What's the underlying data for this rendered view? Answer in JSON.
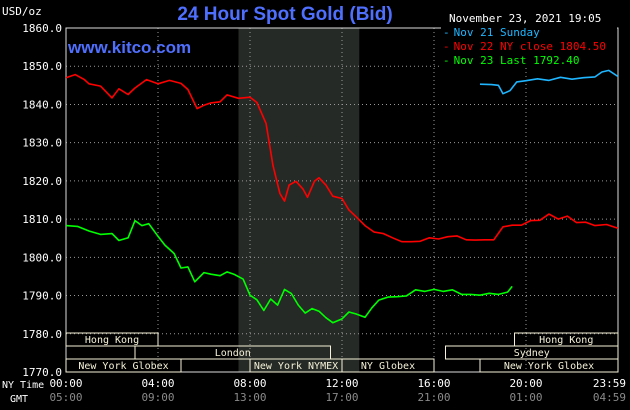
{
  "site": "www.kitco.com",
  "timestamp": "November 23, 2021 19:05",
  "colors": {
    "title": "#4f6fff",
    "background": "#000000",
    "grid": "#9a9a9a",
    "session_shade": "#262a26",
    "session_box_bg": "#f5f2d8",
    "session_box_text": "#2a2a70",
    "series_sunday": "#1fb6ff",
    "series_prev": "#ff0000",
    "series_last": "#00ff00"
  },
  "chart_data": {
    "type": "line",
    "title": "24 Hour Spot Gold (Bid)",
    "ylabel": "USD/oz",
    "xlabel": "",
    "ylim": [
      1770,
      1860
    ],
    "y_ticks": [
      1770,
      1780,
      1790,
      1800,
      1810,
      1820,
      1830,
      1840,
      1850,
      1860
    ],
    "y_tick_labels": [
      "1770.0",
      "1780.0",
      "1790.0",
      "1800.0",
      "1810.0",
      "1820.0",
      "1830.0",
      "1840.0",
      "1850.0",
      "1860.0"
    ],
    "xlim": [
      0,
      24
    ],
    "x_ticks": [
      0,
      4,
      8,
      12,
      16,
      20,
      24
    ],
    "x_tick_labels_ny": [
      "00:00",
      "04:00",
      "08:00",
      "12:00",
      "16:00",
      "20:00",
      "23:59"
    ],
    "x_tick_labels_gmt": [
      "05:00",
      "09:00",
      "13:00",
      "17:00",
      "21:00",
      "01:00",
      "04:59"
    ],
    "x_row_labels": [
      "NY Time",
      "GMT"
    ],
    "grid": true,
    "legend_position": "top-right",
    "highlight_band": [
      7.5,
      12.75
    ],
    "series": [
      {
        "name": "Nov 21 Sunday",
        "color": "#1fb6ff",
        "x": [
          18,
          18.5,
          18.8,
          19,
          19.3,
          19.6,
          20,
          20.5,
          21,
          21.5,
          22,
          22.5,
          23,
          23.3,
          23.6,
          24
        ],
        "y": [
          1845.3,
          1845.2,
          1845.0,
          1842.8,
          1843.6,
          1845.9,
          1846.2,
          1846.7,
          1846.3,
          1847.1,
          1846.6,
          1847.0,
          1847.2,
          1848.5,
          1848.9,
          1847.3
        ]
      },
      {
        "name": "Nov 22 NY close 1804.50",
        "color": "#ff0000",
        "x": [
          0,
          0.4,
          0.8,
          1,
          1.5,
          2,
          2.3,
          2.7,
          3,
          3.5,
          4,
          4.5,
          5,
          5.3,
          5.7,
          6,
          6.3,
          6.7,
          7,
          7.5,
          8,
          8.3,
          8.7,
          9,
          9.3,
          9.5,
          9.7,
          10,
          10.3,
          10.5,
          10.8,
          11,
          11.3,
          11.6,
          12,
          12.3,
          12.6,
          13,
          13.4,
          13.8,
          14.2,
          14.6,
          15,
          15.4,
          15.8,
          16.2,
          16.6,
          17,
          17.4,
          17.8,
          18.2,
          18.6,
          19,
          19.4,
          19.8,
          20.2,
          20.6,
          21,
          21.4,
          21.8,
          22.2,
          22.6,
          23,
          23.5,
          24
        ],
        "y": [
          1847.0,
          1847.8,
          1846.5,
          1845.4,
          1844.8,
          1841.7,
          1844.1,
          1842.6,
          1844.3,
          1846.5,
          1845.4,
          1846.3,
          1845.5,
          1843.9,
          1838.9,
          1839.8,
          1840.4,
          1840.7,
          1842.5,
          1841.6,
          1841.9,
          1840.5,
          1835.0,
          1824.0,
          1816.7,
          1814.7,
          1818.9,
          1819.9,
          1817.9,
          1815.7,
          1819.9,
          1820.8,
          1818.9,
          1816.0,
          1815.4,
          1812.4,
          1810.7,
          1808.3,
          1806.6,
          1806.2,
          1805.1,
          1804.1,
          1804.1,
          1804.2,
          1805.1,
          1804.8,
          1805.4,
          1805.6,
          1804.6,
          1804.5,
          1804.6,
          1804.6,
          1808.0,
          1808.4,
          1808.4,
          1809.6,
          1809.7,
          1811.3,
          1810.0,
          1810.8,
          1809.1,
          1809.2,
          1808.3,
          1808.6,
          1807.6
        ]
      },
      {
        "name": "Nov 23 Last 1792.40",
        "color": "#00ff00",
        "x": [
          0,
          0.5,
          1,
          1.5,
          2,
          2.3,
          2.7,
          3,
          3.3,
          3.6,
          4,
          4.3,
          4.7,
          5,
          5.3,
          5.6,
          6,
          6.3,
          6.7,
          7,
          7.3,
          7.7,
          8,
          8.3,
          8.6,
          8.9,
          9.2,
          9.5,
          9.8,
          10.1,
          10.4,
          10.7,
          11,
          11.3,
          11.6,
          12,
          12.3,
          12.6,
          13,
          13.3,
          13.6,
          14,
          14.4,
          14.8,
          15.2,
          15.6,
          16,
          16.4,
          16.8,
          17.2,
          17.6,
          18,
          18.4,
          18.8,
          19.2,
          19.4
        ],
        "y": [
          1808.3,
          1808.1,
          1806.9,
          1806.0,
          1806.2,
          1804.4,
          1805.1,
          1809.6,
          1808.3,
          1808.8,
          1805.5,
          1803.2,
          1801.0,
          1797.2,
          1797.5,
          1793.6,
          1796.0,
          1795.6,
          1795.2,
          1796.2,
          1795.6,
          1794.3,
          1790.1,
          1788.9,
          1786.1,
          1789.1,
          1787.5,
          1791.6,
          1790.5,
          1787.5,
          1785.4,
          1786.6,
          1785.9,
          1784.2,
          1782.9,
          1783.9,
          1785.7,
          1785.2,
          1784.3,
          1786.8,
          1788.8,
          1789.6,
          1789.7,
          1789.9,
          1791.5,
          1791.1,
          1791.6,
          1791.1,
          1791.5,
          1790.3,
          1790.3,
          1790.1,
          1790.6,
          1790.3,
          1790.9,
          1792.4
        ]
      }
    ]
  },
  "sessions": {
    "rows": [
      [
        {
          "label": "Hong Kong",
          "start": 0,
          "end": 4
        },
        {
          "label": "Hong Kong",
          "start": 19.5,
          "end": 24
        }
      ],
      [
        {
          "label": "London",
          "start": 3,
          "end": 11.5
        },
        {
          "label": "Sydney",
          "start": 16.5,
          "end": 24
        }
      ],
      [
        {
          "label": "New York Globex",
          "start": 0,
          "end": 5
        },
        {
          "label": "New York NYMEX",
          "start": 8,
          "end": 12
        },
        {
          "label": "NY Globex",
          "start": 12,
          "end": 16
        },
        {
          "label": "New York Globex",
          "start": 18,
          "end": 24
        }
      ]
    ]
  }
}
